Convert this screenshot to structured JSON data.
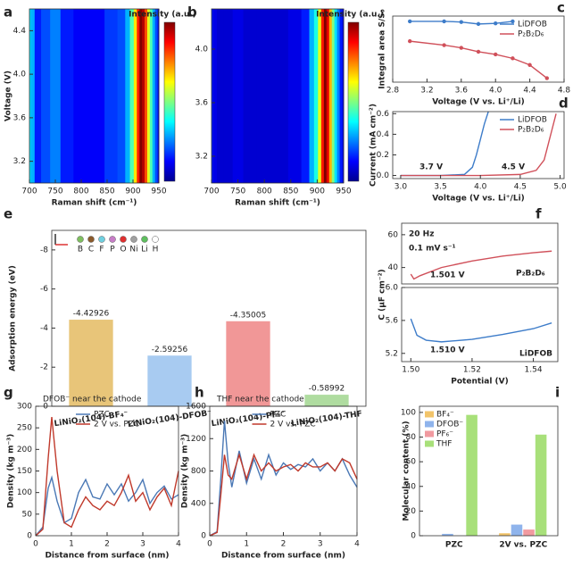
{
  "chart_data": [
    {
      "type": "heatmap",
      "panel": "a",
      "colorbar_label": "Intensity (a.u.)",
      "xlabel": "Raman shift (cm⁻¹)",
      "ylabel": "Voltage (V)",
      "colormap": "jet",
      "x": [
        700,
        705,
        715,
        730,
        750,
        770,
        800,
        830,
        860,
        880,
        890,
        898,
        905,
        910,
        915,
        920,
        925,
        930,
        935,
        940,
        945,
        950
      ],
      "values": [
        0.35,
        0.3,
        0.15,
        0.2,
        0.25,
        0.15,
        0.12,
        0.12,
        0.18,
        0.2,
        0.3,
        0.45,
        0.65,
        0.85,
        1.0,
        0.95,
        0.8,
        0.6,
        0.45,
        0.3,
        0.2,
        0.1
      ],
      "xlim": [
        700,
        950
      ],
      "xticks": [
        700,
        750,
        800,
        850,
        900,
        950
      ],
      "ylim": [
        3.0,
        4.6
      ],
      "yticks": [
        3.2,
        3.6,
        {
          "value": 4,
          "label": "4.0"
        },
        4.4
      ]
    },
    {
      "type": "heatmap",
      "panel": "b",
      "colorbar_label": "Intensity (a.u.)",
      "xlabel": "Raman shift (cm⁻¹)",
      "colormap": "jet",
      "x": [
        700,
        705,
        715,
        730,
        750,
        770,
        800,
        830,
        860,
        880,
        890,
        898,
        905,
        910,
        915,
        920,
        925,
        930,
        935,
        940,
        945,
        950
      ],
      "values": [
        0.15,
        0.1,
        0.08,
        0.08,
        0.1,
        0.08,
        0.08,
        0.08,
        0.1,
        0.15,
        0.3,
        0.4,
        0.6,
        0.85,
        1.0,
        0.9,
        0.7,
        0.5,
        0.35,
        0.25,
        0.15,
        0.1
      ],
      "xlim": [
        700,
        950
      ],
      "xticks": [
        700,
        750,
        800,
        850,
        900,
        950
      ],
      "ylim": [
        3.0,
        4.3
      ],
      "yticks": [
        3.2,
        3.6,
        {
          "value": 4,
          "label": "4.0"
        }
      ]
    },
    {
      "type": "line",
      "panel": "c",
      "xlabel": "Voltage (V vs. Li⁺/Li)",
      "ylabel": "Integral area S/S₀",
      "legend": "upper right",
      "markers": true,
      "xlim": [
        2.8,
        4.8
      ],
      "xticks": [
        2.8,
        3.2,
        3.6,
        {
          "value": 4,
          "label": "4.0"
        },
        4.4,
        4.8
      ],
      "ylim": [
        0,
        1
      ],
      "series": [
        {
          "name": "LiDFOB",
          "color": "#3d7cc9",
          "x": [
            3.0,
            3.4,
            3.6,
            3.8,
            4.0,
            4.2
          ],
          "values": [
            0.92,
            0.92,
            0.91,
            0.88,
            0.89,
            0.92
          ]
        },
        {
          "name": "P₂B₂D₆",
          "color": "#d0505a",
          "x": [
            3.0,
            3.4,
            3.6,
            3.8,
            4.0,
            4.2,
            4.4,
            4.6
          ],
          "values": [
            0.62,
            0.56,
            0.52,
            0.46,
            0.42,
            0.36,
            0.26,
            0.06
          ]
        }
      ]
    },
    {
      "type": "line",
      "panel": "d",
      "xlabel": "Voltage (V vs. Li⁺/Li)",
      "ylabel": "Current (mA cm⁻²)",
      "legend": "upper right",
      "annotations": [
        "3.7 V",
        "4.5 V"
      ],
      "xlim": [
        2.9,
        5.05
      ],
      "xticks": [
        {
          "value": 3,
          "label": "3.0"
        },
        3.5,
        {
          "value": 4,
          "label": "4.0"
        },
        4.5,
        {
          "value": 5,
          "label": "5.0"
        }
      ],
      "ylim": [
        -0.03,
        0.62
      ],
      "yticks": [
        {
          "value": 0,
          "label": "0.0"
        },
        0.2,
        0.4,
        0.6
      ],
      "series": [
        {
          "name": "LiDFOB",
          "color": "#3d7cc9",
          "x": [
            3.0,
            3.5,
            3.8,
            3.9,
            3.95,
            4.0,
            4.05,
            4.1
          ],
          "values": [
            0,
            0,
            0.01,
            0.08,
            0.2,
            0.35,
            0.5,
            0.62
          ]
        },
        {
          "name": "P₂B₂D₆",
          "color": "#d0505a",
          "x": [
            3.0,
            4.0,
            4.5,
            4.7,
            4.8,
            4.85,
            4.9,
            4.95
          ],
          "values": [
            0,
            0,
            0.01,
            0.05,
            0.15,
            0.3,
            0.45,
            0.6
          ]
        }
      ]
    },
    {
      "type": "bar",
      "panel": "e",
      "ylabel": "Adsorption energy (eV)",
      "categories": [
        "LiNiO₂(104)-BF₄⁻",
        "LiNiO₂(104)-DFOB⁻",
        "LiNiO₂(104)-PF₆⁻",
        "LiNiO₂(104)-THF"
      ],
      "values": [
        -4.42926,
        -2.59256,
        -4.35005,
        -0.58992
      ],
      "value_labels": [
        "-4.42926",
        "-2.59256",
        "-4.35005",
        "-0.58992"
      ],
      "colors": [
        "#e6bf6a",
        "#9ec5ef",
        "#f08c8c",
        "#a6d896"
      ],
      "ylim": [
        0,
        -9
      ],
      "yticks": [
        0,
        -2,
        -4,
        -6,
        -8
      ],
      "elements": [
        {
          "name": "B",
          "color": "#7fbf5f"
        },
        {
          "name": "C",
          "color": "#8b5a2b"
        },
        {
          "name": "F",
          "color": "#6fd0e0"
        },
        {
          "name": "P",
          "color": "#c77dc7"
        },
        {
          "name": "O",
          "color": "#e03030"
        },
        {
          "name": "Ni",
          "color": "#a0a0a0"
        },
        {
          "name": "Li",
          "color": "#5fbf5f"
        },
        {
          "name": "H",
          "color": "#ffffff"
        }
      ]
    },
    {
      "type": "line",
      "panel": "f",
      "ylabel": "C (μF cm⁻²)",
      "annotations": [
        "20 Hz",
        "0.1 mV s⁻¹",
        "1.501 V"
      ],
      "xlim": [
        1.497,
        1.548
      ],
      "ylim": [
        30,
        67
      ],
      "yticks": [
        40,
        60
      ],
      "series": [
        {
          "name": "P₂B₂D₆",
          "color": "#d0505a",
          "x": [
            1.5,
            1.501,
            1.503,
            1.51,
            1.52,
            1.53,
            1.54,
            1.546
          ],
          "values": [
            36,
            33,
            35,
            40,
            44,
            47,
            49,
            50
          ]
        }
      ]
    },
    {
      "type": "line",
      "xlabel": "Potential (V)",
      "annotations": [
        "1.510 V"
      ],
      "xlim": [
        1.497,
        1.548
      ],
      "xticks": [
        {
          "value": 1.5,
          "label": "1.50"
        },
        1.52,
        1.54
      ],
      "ylim": [
        5.1,
        6.0
      ],
      "yticks": [
        {
          "value": 6,
          "label": "6.0"
        },
        5.6,
        5.2
      ],
      "series": [
        {
          "name": "LiDFOB",
          "color": "#3d7cc9",
          "x": [
            1.5,
            1.502,
            1.505,
            1.51,
            1.52,
            1.53,
            1.54,
            1.546
          ],
          "values": [
            5.62,
            5.42,
            5.36,
            5.34,
            5.37,
            5.43,
            5.5,
            5.57
          ]
        }
      ]
    },
    {
      "type": "line",
      "panel": "g",
      "title": "DFOB⁻ near the cathode",
      "xlabel": "Distance from surface (nm)",
      "ylabel": "Density (kg m⁻³)",
      "legend": "upper center",
      "xlim": [
        0,
        4
      ],
      "xticks": [
        0,
        1,
        2,
        3,
        4
      ],
      "ylim": [
        0,
        300
      ],
      "yticks": [
        0,
        50,
        100,
        150,
        200,
        250,
        300
      ],
      "series": [
        {
          "name": "PZC",
          "color": "#4a78b5",
          "x": [
            0,
            0.2,
            0.35,
            0.45,
            0.6,
            0.8,
            1.0,
            1.2,
            1.4,
            1.6,
            1.8,
            2.0,
            2.2,
            2.4,
            2.6,
            2.8,
            3.0,
            3.2,
            3.4,
            3.6,
            3.8,
            4.0
          ],
          "values": [
            0,
            20,
            110,
            135,
            80,
            30,
            40,
            100,
            130,
            90,
            85,
            120,
            95,
            120,
            80,
            100,
            130,
            75,
            100,
            115,
            85,
            95
          ]
        },
        {
          "name": "2 V vs. PZC",
          "color": "#c0392b",
          "x": [
            0,
            0.2,
            0.35,
            0.45,
            0.6,
            0.8,
            1.0,
            1.2,
            1.4,
            1.6,
            1.8,
            2.0,
            2.2,
            2.4,
            2.6,
            2.8,
            3.0,
            3.2,
            3.4,
            3.6,
            3.8,
            4.0
          ],
          "values": [
            0,
            15,
            180,
            275,
            150,
            30,
            20,
            60,
            90,
            70,
            60,
            80,
            70,
            100,
            140,
            80,
            100,
            60,
            90,
            110,
            70,
            150
          ]
        }
      ]
    },
    {
      "type": "line",
      "panel": "h",
      "title": "THF near the cathode",
      "xlabel": "Distance from surface (nm)",
      "ylabel": "Density (kg m⁻³)",
      "legend": "upper center",
      "xlim": [
        0,
        4
      ],
      "xticks": [
        0,
        1,
        2,
        3,
        4
      ],
      "ylim": [
        0,
        1600
      ],
      "yticks": [
        0,
        400,
        800,
        1200,
        1600
      ],
      "series": [
        {
          "name": "PZC",
          "color": "#4a78b5",
          "x": [
            0,
            0.2,
            0.3,
            0.4,
            0.5,
            0.6,
            0.8,
            1.0,
            1.2,
            1.4,
            1.6,
            1.8,
            2.0,
            2.2,
            2.4,
            2.6,
            2.8,
            3.0,
            3.2,
            3.4,
            3.6,
            3.8,
            4.0
          ],
          "values": [
            0,
            50,
            700,
            1420,
            900,
            600,
            1050,
            650,
            950,
            700,
            1000,
            750,
            900,
            820,
            880,
            850,
            950,
            800,
            900,
            800,
            950,
            750,
            600
          ]
        },
        {
          "name": "2 V vs. PZC",
          "color": "#c0392b",
          "x": [
            0,
            0.2,
            0.3,
            0.4,
            0.5,
            0.6,
            0.8,
            1.0,
            1.2,
            1.4,
            1.6,
            1.8,
            2.0,
            2.2,
            2.4,
            2.6,
            2.8,
            3.0,
            3.2,
            3.4,
            3.6,
            3.8,
            4.0
          ],
          "values": [
            0,
            40,
            500,
            1000,
            750,
            700,
            1000,
            700,
            1000,
            800,
            900,
            800,
            850,
            880,
            800,
            900,
            850,
            850,
            900,
            800,
            950,
            900,
            700
          ]
        }
      ]
    },
    {
      "type": "bar",
      "panel": "i",
      "ylabel": "Molecular content (%)",
      "legend": "upper left",
      "categories": [
        "PZC",
        "2V vs. PZC"
      ],
      "ylim": [
        0,
        105
      ],
      "yticks": [
        0,
        20,
        40,
        60,
        80,
        100
      ],
      "series": [
        {
          "name": "BF₄⁻",
          "color": "#f2c46a",
          "values": [
            0,
            2
          ]
        },
        {
          "name": "DFOB⁻",
          "color": "#8fb4ec",
          "values": [
            1.5,
            9
          ]
        },
        {
          "name": "PF₆⁻",
          "color": "#f19aa0",
          "values": [
            0,
            5
          ]
        },
        {
          "name": "THF",
          "color": "#a8e07a",
          "values": [
            98,
            82
          ]
        }
      ]
    }
  ]
}
